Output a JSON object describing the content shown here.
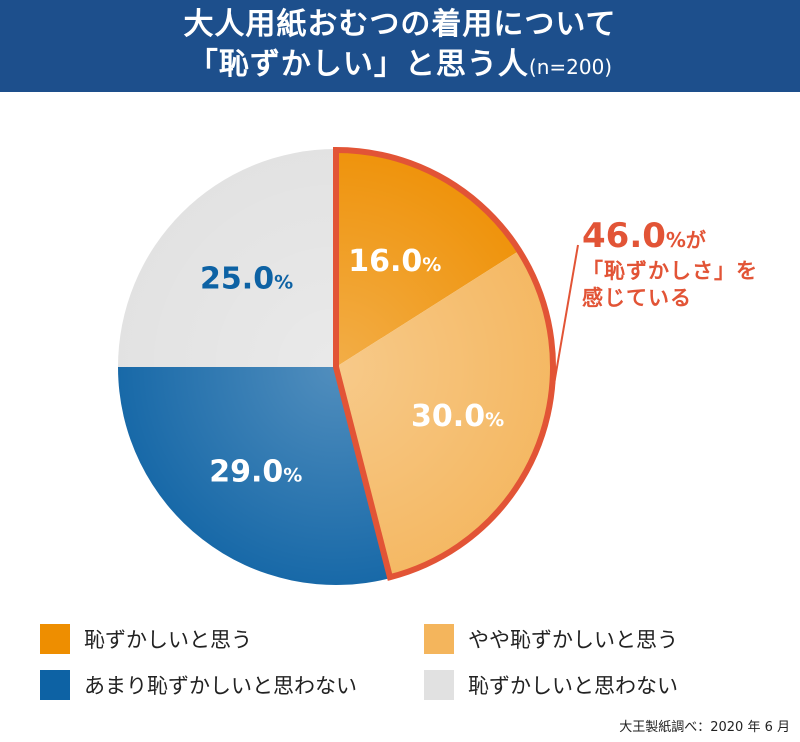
{
  "header": {
    "title_line1": "大人用紙おむつの着用について",
    "title_line2": "「恥ずかしい」と思う人",
    "sample_note": "(n=200)"
  },
  "chart_data": {
    "type": "pie",
    "title": "大人用紙おむつの着用について「恥ずかしい」と思う人(n=200)",
    "unit": "%",
    "slices": [
      {
        "label": "恥ずかしいと思う",
        "value": 16.0,
        "display": "16.0",
        "color": "#ee8e00",
        "text_color": "#ffffff"
      },
      {
        "label": "やや恥ずかしいと思う",
        "value": 30.0,
        "display": "30.0",
        "color": "#f4b55c",
        "text_color": "#ffffff"
      },
      {
        "label": "あまり恥ずかしいと思わない",
        "value": 29.0,
        "display": "29.0",
        "color": "#0d62a4",
        "text_color": "#ffffff"
      },
      {
        "label": "恥ずかしいと思わない",
        "value": 25.0,
        "display": "25.0",
        "color": "#e1e1e1",
        "text_color": "#0d62a4"
      }
    ],
    "highlight": {
      "value": "46.0",
      "outline_color": "#e25436"
    },
    "legend_position": "bottom"
  },
  "callout": {
    "value": "46.0",
    "unit_suffix": "%が",
    "line2": "「恥ずかしさ」を",
    "line3": "感じている"
  },
  "legend": {
    "items": [
      {
        "label": "恥ずかしいと思う",
        "color": "#ee8e00"
      },
      {
        "label": "やや恥ずかしいと思う",
        "color": "#f4b55c"
      },
      {
        "label": "あまり恥ずかしいと思わない",
        "color": "#0d62a4"
      },
      {
        "label": "恥ずかしいと思わない",
        "color": "#e1e1e1"
      }
    ]
  },
  "source": "大王製紙調べ：2020 年 6 月"
}
